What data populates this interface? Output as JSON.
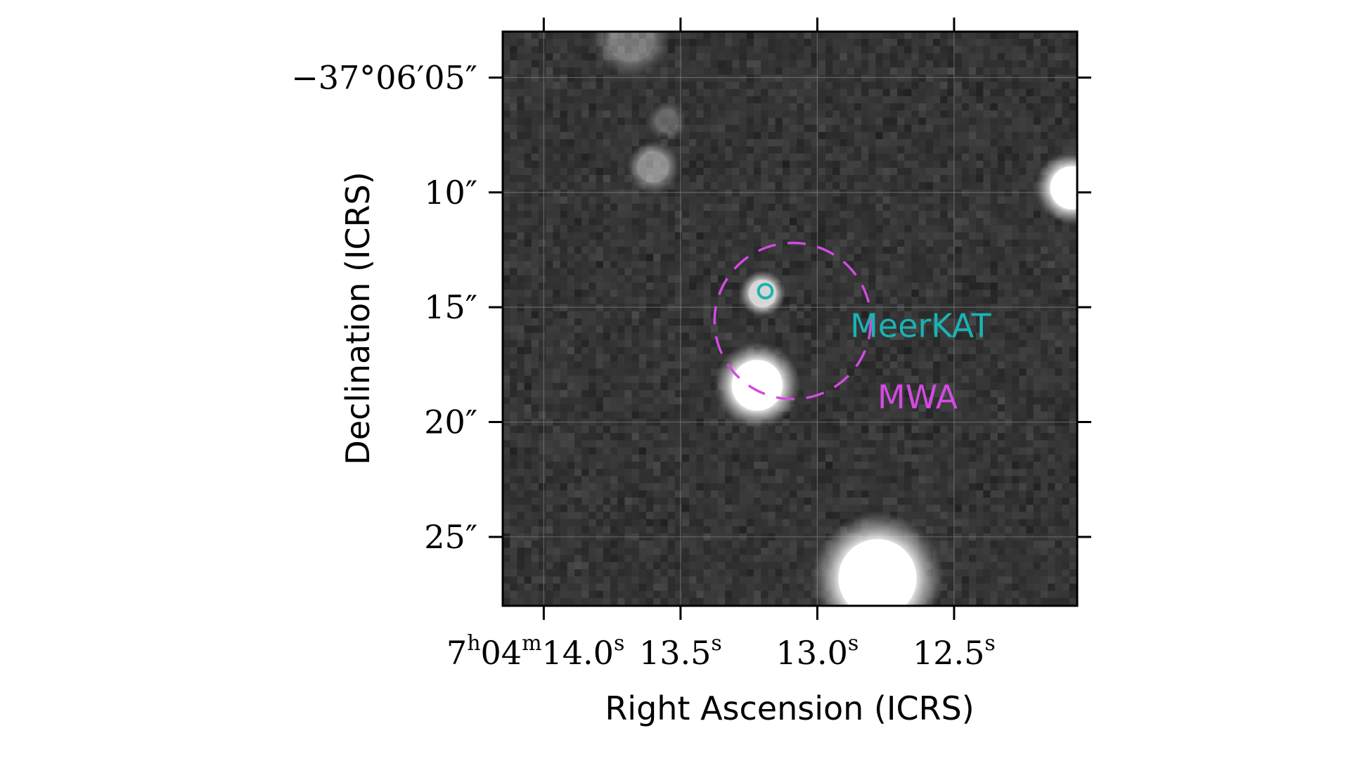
{
  "chart_data": {
    "type": "image",
    "xlabel": "Right Ascension (ICRS)",
    "ylabel": "Declination (ICRS)",
    "x_ticks": [
      {
        "ra_sec": 14.0,
        "label": "7h04m14.0s",
        "parts": {
          "hour": "7",
          "h": "h",
          "minute": "04",
          "m": "m",
          "sec": "14.0",
          "s": "s"
        }
      },
      {
        "ra_sec": 13.5,
        "label": "13.5s",
        "parts": {
          "sec": "13.5",
          "s": "s"
        }
      },
      {
        "ra_sec": 13.0,
        "label": "13.0s",
        "parts": {
          "sec": "13.0",
          "s": "s"
        }
      },
      {
        "ra_sec": 12.5,
        "label": "12.5s",
        "parts": {
          "sec": "12.5",
          "s": "s"
        }
      }
    ],
    "y_ticks": [
      {
        "dec_arcsec": 5,
        "label": "−37°06′05″"
      },
      {
        "dec_arcsec": 10,
        "label": "10″"
      },
      {
        "dec_arcsec": 15,
        "label": "15″"
      },
      {
        "dec_arcsec": 20,
        "label": "20″"
      },
      {
        "dec_arcsec": 25,
        "label": "25″"
      }
    ],
    "xlim_ra_sec": [
      14.15,
      12.05
    ],
    "ylim_dec_arcsec": [
      3.0,
      28.0
    ],
    "grid": true,
    "sources": [
      {
        "ra_sec": 13.6,
        "dec_arcsec": 8.9,
        "brightness": 0.45,
        "size_arcsec": 0.8
      },
      {
        "ra_sec": 13.2,
        "dec_arcsec": 14.4,
        "brightness": 0.8,
        "size_arcsec": 0.7
      },
      {
        "ra_sec": 13.22,
        "dec_arcsec": 18.4,
        "brightness": 1.0,
        "size_arcsec": 1.3
      },
      {
        "ra_sec": 12.78,
        "dec_arcsec": 26.8,
        "brightness": 1.0,
        "size_arcsec": 2.0
      },
      {
        "ra_sec": 12.07,
        "dec_arcsec": 9.8,
        "brightness": 1.0,
        "size_arcsec": 1.1
      },
      {
        "ra_sec": 13.68,
        "dec_arcsec": 3.3,
        "brightness": 0.35,
        "size_arcsec": 1.2
      },
      {
        "ra_sec": 13.55,
        "dec_arcsec": 6.9,
        "brightness": 0.25,
        "size_arcsec": 0.6
      }
    ],
    "markers": [
      {
        "name": "MeerKAT",
        "ra_sec": 13.19,
        "dec_arcsec": 14.3,
        "radius_arcsec": 0.3,
        "color": "#19b3b3",
        "style": "solid",
        "label": "MeerKAT"
      },
      {
        "name": "MWA",
        "ra_sec": 13.09,
        "dec_arcsec": 15.6,
        "radius_arcsec": 3.4,
        "color": "#d24be0",
        "style": "dashed",
        "label": "MWA"
      }
    ]
  }
}
